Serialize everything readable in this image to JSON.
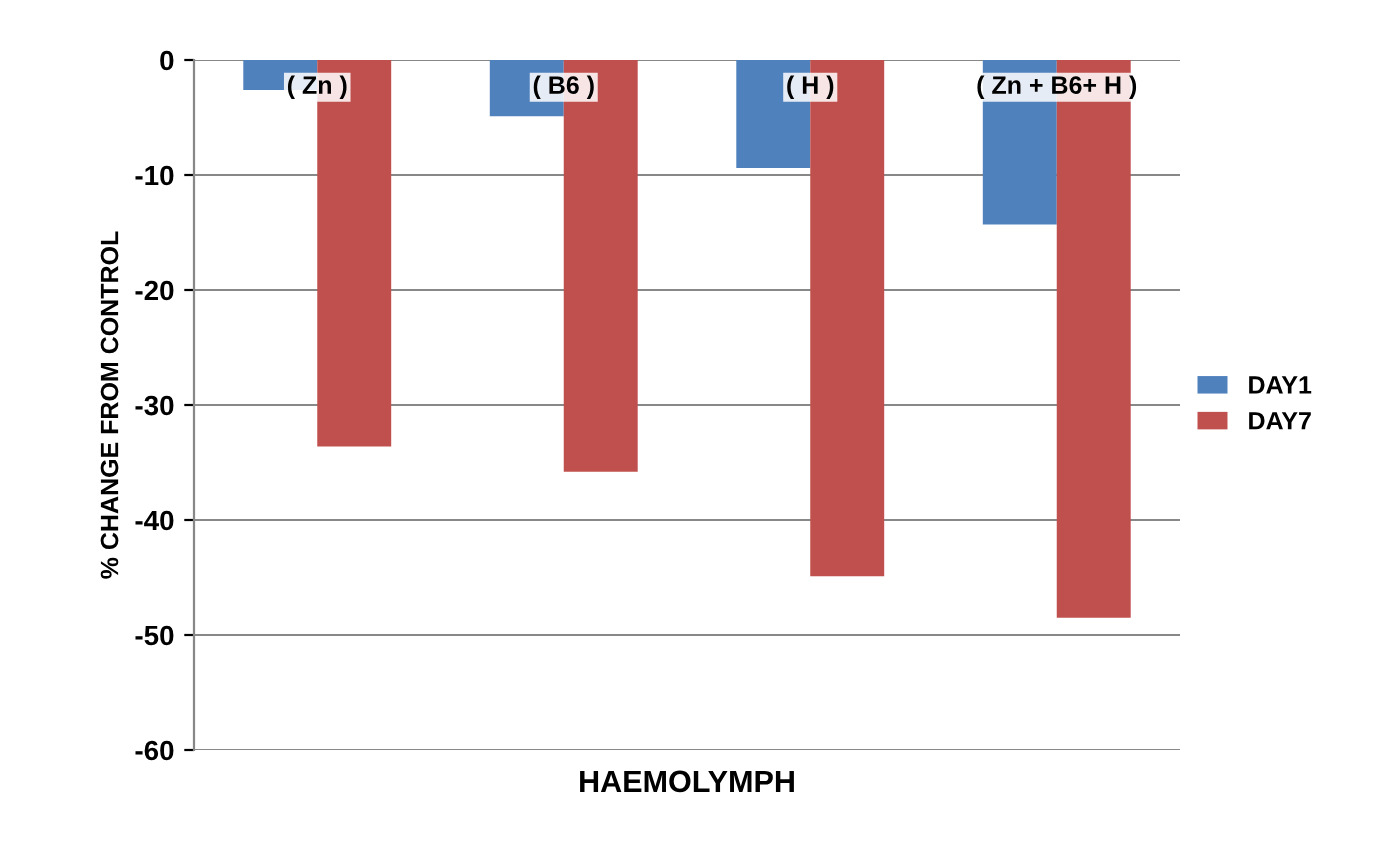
{
  "chart_data": {
    "type": "bar",
    "xlabel": "HAEMOLYMPH",
    "ylabel": "% CHANGE FROM CONTROL",
    "categories": [
      "( Zn )",
      "( B6 )",
      "( H )",
      "( Zn + B6+ H )"
    ],
    "series": [
      {
        "name": "DAY1",
        "color": "#4f81bd",
        "values": [
          -2.6,
          -4.9,
          -9.4,
          -14.3
        ]
      },
      {
        "name": "DAY7",
        "color": "#c0504d",
        "values": [
          -33.6,
          -35.8,
          -44.9,
          -48.5
        ]
      }
    ],
    "ylim": [
      -60,
      0
    ],
    "yticks": [
      -60,
      -50,
      -40,
      -30,
      -20,
      -10,
      0
    ],
    "grid": "y",
    "legend": "right"
  }
}
